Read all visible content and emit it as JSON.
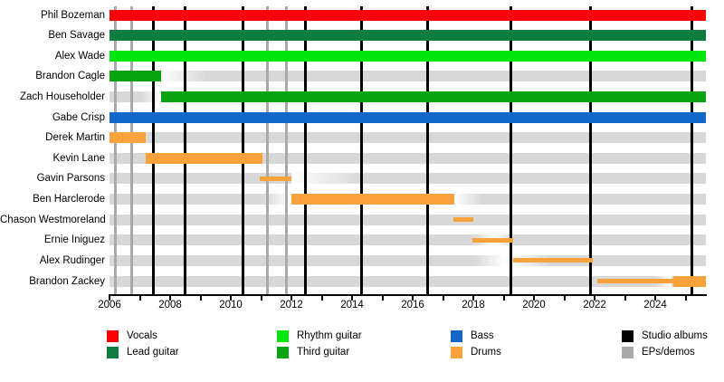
{
  "chart_data": {
    "type": "gantt-timeline",
    "description": "Band member timeline with instrument roles, studio album and EP/demo release lines",
    "x_axis": {
      "min": 2006,
      "max": 2025.67,
      "tick_labels": [
        "2006",
        "2008",
        "2010",
        "2012",
        "2014",
        "2016",
        "2018",
        "2020",
        "2022",
        "2024"
      ],
      "labeled_tick_years": [
        2006,
        2008,
        2010,
        2012,
        2014,
        2016,
        2018,
        2020,
        2022,
        2024
      ],
      "minor_tick_every_years": 1,
      "minor_tick_start": 2006,
      "minor_tick_end": 2025
    },
    "colors": {
      "vocals": "#fa0000",
      "lead_guitar": "#0e7b3f",
      "rhythm_guitar": "#00e60c",
      "third_guitar": "#0aa312",
      "bass": "#1267c8",
      "drums": "#f9a23c",
      "studio_album_line": "#000000",
      "ep_demo_line": "#a9a9a9",
      "track": "#d8d8d8"
    },
    "members": [
      {
        "name": "Phil Bozeman",
        "track": [
          {
            "type": "solid",
            "from": 2006,
            "to": 2025.67
          }
        ],
        "bars": [
          {
            "role": "vocals",
            "from": 2006,
            "to": 2025.67,
            "style": "thick"
          }
        ]
      },
      {
        "name": "Ben Savage",
        "track": [
          {
            "type": "solid",
            "from": 2006,
            "to": 2025.67
          }
        ],
        "bars": [
          {
            "role": "lead_guitar",
            "from": 2006,
            "to": 2025.67,
            "style": "thick"
          }
        ]
      },
      {
        "name": "Alex Wade",
        "track": [
          {
            "type": "solid",
            "from": 2006,
            "to": 2025.67
          }
        ],
        "bars": [
          {
            "role": "rhythm_guitar",
            "from": 2006,
            "to": 2025.67,
            "style": "thick"
          }
        ]
      },
      {
        "name": "Brandon Cagle",
        "track": [
          {
            "type": "solid",
            "from": 2006,
            "to": 2007.7
          },
          {
            "type": "fadein",
            "from": 2007.7,
            "to": 2009.2
          },
          {
            "type": "solid",
            "from": 2009.2,
            "to": 2025.67
          }
        ],
        "bars": [
          {
            "role": "third_guitar",
            "from": 2006,
            "to": 2007.7,
            "style": "thick"
          }
        ]
      },
      {
        "name": "Zach Householder",
        "track": [
          {
            "type": "solid",
            "from": 2006,
            "to": 2007.0
          },
          {
            "type": "fadeout",
            "from": 2007.0,
            "to": 2007.7
          },
          {
            "type": "solid",
            "from": 2007.7,
            "to": 2025.67
          }
        ],
        "bars": [
          {
            "role": "third_guitar",
            "from": 2007.7,
            "to": 2025.67,
            "style": "thick"
          }
        ]
      },
      {
        "name": "Gabe Crisp",
        "track": [
          {
            "type": "solid",
            "from": 2006,
            "to": 2025.67
          }
        ],
        "bars": [
          {
            "role": "bass",
            "from": 2006,
            "to": 2025.67,
            "style": "thick"
          }
        ]
      },
      {
        "name": "Derek Martin",
        "track": [
          {
            "type": "solid",
            "from": 2006,
            "to": 2025.67
          }
        ],
        "bars": [
          {
            "role": "drums",
            "from": 2006,
            "to": 2007.2,
            "style": "thick"
          }
        ]
      },
      {
        "name": "Kevin Lane",
        "track": [
          {
            "type": "solid",
            "from": 2006,
            "to": 2025.67
          }
        ],
        "bars": [
          {
            "role": "drums",
            "from": 2007.2,
            "to": 2011.05,
            "style": "thick"
          }
        ]
      },
      {
        "name": "Gavin Parsons",
        "track": [
          {
            "type": "solid",
            "from": 2006,
            "to": 2012.0
          },
          {
            "type": "fadein",
            "from": 2012.0,
            "to": 2014.4
          },
          {
            "type": "solid",
            "from": 2014.4,
            "to": 2025.67
          }
        ],
        "bars": [
          {
            "role": "drums",
            "from": 2010.96,
            "to": 2012.0,
            "style": "thin"
          }
        ]
      },
      {
        "name": "Ben Harclerode",
        "track": [
          {
            "type": "solid",
            "from": 2006,
            "to": 2011.05
          },
          {
            "type": "fadeout",
            "from": 2011.05,
            "to": 2012.0
          },
          {
            "type": "solid",
            "from": 2012.0,
            "to": 2017.37
          },
          {
            "type": "fadein",
            "from": 2017.37,
            "to": 2018.3
          },
          {
            "type": "solid",
            "from": 2018.3,
            "to": 2025.67
          }
        ],
        "bars": [
          {
            "role": "drums",
            "from": 2012.0,
            "to": 2017.37,
            "style": "thick"
          }
        ]
      },
      {
        "name": "Chason Westmoreland",
        "track": [
          {
            "type": "solid",
            "from": 2006,
            "to": 2025.67
          }
        ],
        "bars": [
          {
            "role": "drums",
            "from": 2017.34,
            "to": 2018.0,
            "style": "thin"
          }
        ]
      },
      {
        "name": "Ernie Iniguez",
        "track": [
          {
            "type": "solid",
            "from": 2006,
            "to": 2018.0
          },
          {
            "type": "fadeout",
            "from": 2018.0,
            "to": 2018.7
          },
          {
            "type": "fadein",
            "from": 2018.7,
            "to": 2019.4
          },
          {
            "type": "solid",
            "from": 2019.4,
            "to": 2025.67
          }
        ],
        "bars": [
          {
            "role": "drums",
            "from": 2017.97,
            "to": 2019.31,
            "style": "thin"
          }
        ]
      },
      {
        "name": "Alex Rudinger",
        "track": [
          {
            "type": "solid",
            "from": 2006,
            "to": 2018.0
          },
          {
            "type": "fadeout",
            "from": 2018.0,
            "to": 2019.0
          },
          {
            "type": "fadein",
            "from": 2019.0,
            "to": 2020.6
          },
          {
            "type": "solid",
            "from": 2020.6,
            "to": 2025.67
          }
        ],
        "bars": [
          {
            "role": "drums",
            "from": 2019.31,
            "to": 2021.94,
            "style": "thin"
          }
        ]
      },
      {
        "name": "Brandon Zackey",
        "track": [
          {
            "type": "solid",
            "from": 2006,
            "to": 2024.0
          },
          {
            "type": "fadeout",
            "from": 2024.0,
            "to": 2024.55
          },
          {
            "type": "solid",
            "from": 2024.55,
            "to": 2025.67
          }
        ],
        "bars": [
          {
            "role": "drums",
            "from": 2022.1,
            "to": 2024.6,
            "style": "thin"
          },
          {
            "role": "drums",
            "from": 2024.6,
            "to": 2025.67,
            "style": "thick"
          }
        ]
      }
    ],
    "events": {
      "studio_albums": [
        2007.45,
        2008.5,
        2010.4,
        2012.45,
        2014.3,
        2016.5,
        2019.25,
        2021.85,
        2025.2
      ],
      "eps_demos": [
        2006.2,
        2006.73,
        2011.2,
        2011.85
      ]
    }
  },
  "legend": {
    "items": [
      {
        "label": "Vocals",
        "color": "#fa0000",
        "col": 0,
        "row": 0
      },
      {
        "label": "Lead guitar",
        "color": "#0e7b3f",
        "col": 0,
        "row": 1
      },
      {
        "label": "Rhythm guitar",
        "color": "#00e60c",
        "col": 1,
        "row": 0
      },
      {
        "label": "Third guitar",
        "color": "#0aa312",
        "col": 1,
        "row": 1
      },
      {
        "label": "Bass",
        "color": "#1267c8",
        "col": 2,
        "row": 0
      },
      {
        "label": "Drums",
        "color": "#f9a23c",
        "col": 2,
        "row": 1
      },
      {
        "label": "Studio albums",
        "color": "#000000",
        "col": 3,
        "row": 0
      },
      {
        "label": "EPs/demos",
        "color": "#a9a9a9",
        "col": 3,
        "row": 1
      }
    ]
  }
}
